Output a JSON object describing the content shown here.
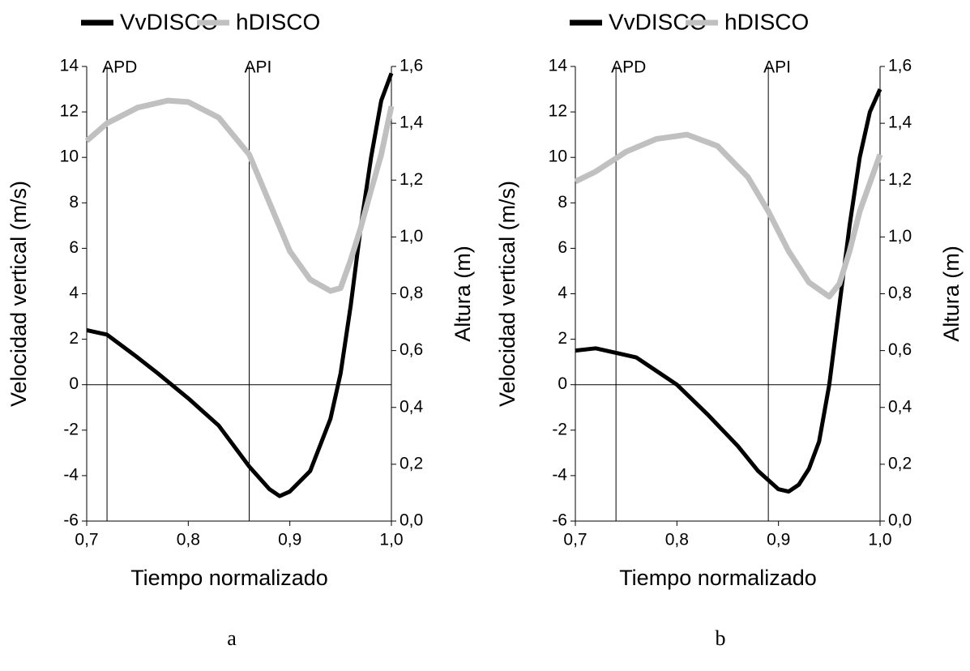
{
  "chart_data": [
    {
      "type": "line",
      "caption": "a",
      "xlabel": "Tiempo normalizado",
      "ylabel": "Velocidad vertical (m/s)",
      "y2label": "Altura (m)",
      "xlim": [
        0.7,
        1.0
      ],
      "xticks": [
        {
          "value": 0.7,
          "label": "0,7"
        },
        {
          "value": 0.8,
          "label": "0,8"
        },
        {
          "value": 0.9,
          "label": "0,9"
        },
        {
          "value": 1.0,
          "label": "1,0"
        }
      ],
      "ylim": [
        -6,
        14
      ],
      "yticks": [
        -6,
        -4,
        -2,
        0,
        2,
        4,
        6,
        8,
        10,
        12,
        14
      ],
      "y2lim": [
        0,
        1.6
      ],
      "y2ticks": [
        {
          "value": 0,
          "label": "0,0"
        },
        {
          "value": 0.2,
          "label": "0,2"
        },
        {
          "value": 0.4,
          "label": "0,4"
        },
        {
          "value": 0.6,
          "label": "0,6"
        },
        {
          "value": 0.8,
          "label": "0,8"
        },
        {
          "value": 1.0,
          "label": "1,0"
        },
        {
          "value": 1.2,
          "label": "1,2"
        },
        {
          "value": 1.4,
          "label": "1,4"
        },
        {
          "value": 1.6,
          "label": "1,6"
        }
      ],
      "annotations": [
        {
          "text": "APD",
          "x": 0.72
        },
        {
          "text": "API",
          "x": 0.86
        }
      ],
      "series": [
        {
          "name": "VvDISCO",
          "color": "#000000",
          "axis": "y",
          "x": [
            0.7,
            0.72,
            0.75,
            0.77,
            0.8,
            0.83,
            0.86,
            0.88,
            0.89,
            0.9,
            0.92,
            0.94,
            0.95,
            0.96,
            0.97,
            0.98,
            0.99,
            1.0
          ],
          "values": [
            2.4,
            2.2,
            1.2,
            0.5,
            -0.6,
            -1.8,
            -3.6,
            -4.6,
            -4.9,
            -4.7,
            -3.8,
            -1.5,
            0.5,
            3.5,
            7,
            10,
            12.5,
            13.7
          ]
        },
        {
          "name": "hDISCO",
          "color": "#c0c0c0",
          "axis": "y2",
          "x": [
            0.7,
            0.72,
            0.75,
            0.78,
            0.8,
            0.83,
            0.86,
            0.88,
            0.9,
            0.92,
            0.94,
            0.95,
            0.96,
            0.97,
            0.98,
            0.99,
            1.0
          ],
          "values": [
            1.338,
            1.4,
            1.455,
            1.48,
            1.475,
            1.42,
            1.29,
            1.12,
            0.95,
            0.85,
            0.81,
            0.82,
            0.92,
            1.035,
            1.165,
            1.29,
            1.46
          ]
        }
      ]
    },
    {
      "type": "line",
      "caption": "b",
      "xlabel": "Tiempo normalizado",
      "ylabel": "Velocidad vertical (m/s)",
      "y2label": "Altura (m)",
      "xlim": [
        0.7,
        1.0
      ],
      "xticks": [
        {
          "value": 0.7,
          "label": "0,7"
        },
        {
          "value": 0.8,
          "label": "0,8"
        },
        {
          "value": 0.9,
          "label": "0,9"
        },
        {
          "value": 1.0,
          "label": "1,0"
        }
      ],
      "ylim": [
        -6,
        14
      ],
      "yticks": [
        -6,
        -4,
        -2,
        0,
        2,
        4,
        6,
        8,
        10,
        12,
        14
      ],
      "y2lim": [
        0,
        1.6
      ],
      "y2ticks": [
        {
          "value": 0,
          "label": "0,0"
        },
        {
          "value": 0.2,
          "label": "0,2"
        },
        {
          "value": 0.4,
          "label": "0,4"
        },
        {
          "value": 0.6,
          "label": "0,6"
        },
        {
          "value": 0.8,
          "label": "0,8"
        },
        {
          "value": 1.0,
          "label": "1,0"
        },
        {
          "value": 1.2,
          "label": "1,2"
        },
        {
          "value": 1.4,
          "label": "1,4"
        },
        {
          "value": 1.6,
          "label": "1,6"
        }
      ],
      "annotations": [
        {
          "text": "APD",
          "x": 0.74
        },
        {
          "text": "API",
          "x": 0.89
        }
      ],
      "series": [
        {
          "name": "VvDISCO",
          "color": "#000000",
          "axis": "y",
          "x": [
            0.7,
            0.72,
            0.74,
            0.76,
            0.78,
            0.8,
            0.83,
            0.86,
            0.88,
            0.9,
            0.91,
            0.92,
            0.93,
            0.94,
            0.95,
            0.96,
            0.97,
            0.98,
            0.99,
            1.0
          ],
          "values": [
            1.5,
            1.6,
            1.4,
            1.2,
            0.6,
            0,
            -1.3,
            -2.7,
            -3.8,
            -4.6,
            -4.7,
            -4.4,
            -3.7,
            -2.5,
            0,
            3.5,
            7,
            10,
            12,
            13
          ]
        },
        {
          "name": "hDISCO",
          "color": "#c0c0c0",
          "axis": "y2",
          "x": [
            0.7,
            0.72,
            0.75,
            0.78,
            0.81,
            0.84,
            0.87,
            0.89,
            0.91,
            0.93,
            0.95,
            0.96,
            0.97,
            0.98,
            0.99,
            1.0
          ],
          "values": [
            1.195,
            1.23,
            1.3,
            1.345,
            1.36,
            1.32,
            1.21,
            1.09,
            0.95,
            0.84,
            0.79,
            0.835,
            0.95,
            1.09,
            1.19,
            1.29
          ]
        }
      ]
    }
  ]
}
